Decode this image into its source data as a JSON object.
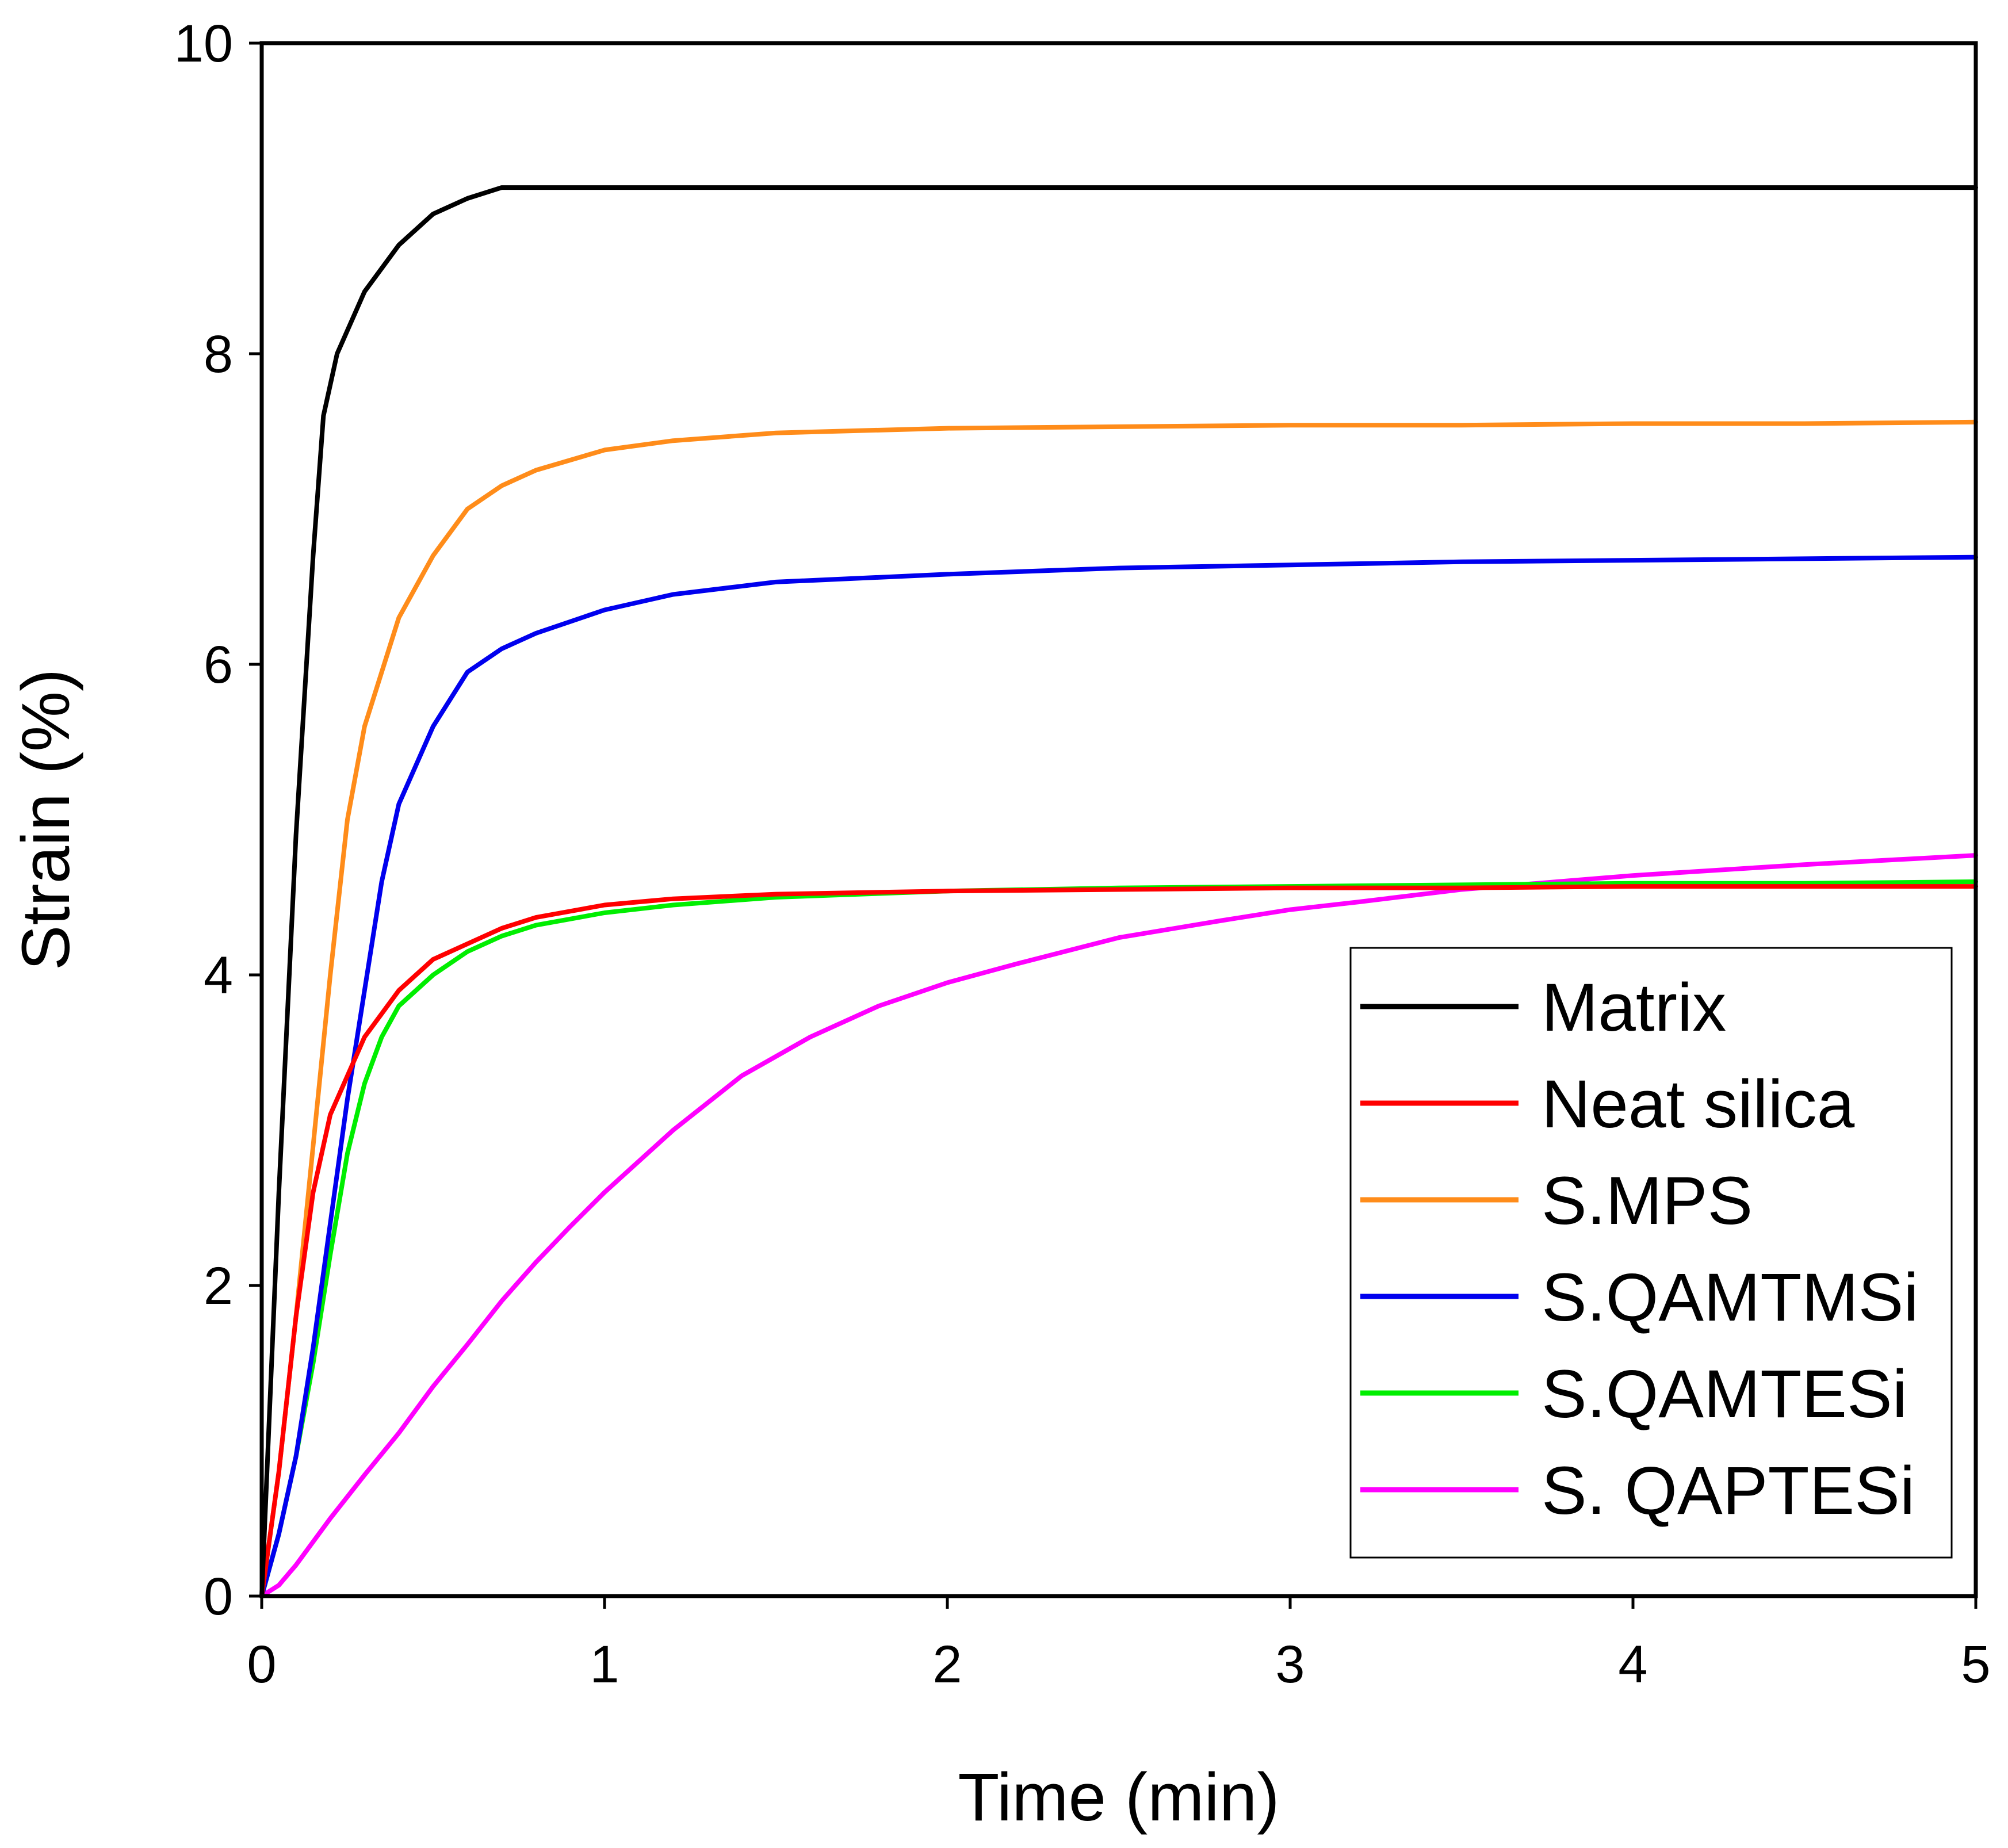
{
  "chart_data": {
    "type": "line",
    "title": "",
    "xlabel": "Time (min)",
    "ylabel": "Strain (%)",
    "xlim": [
      0,
      5
    ],
    "ylim": [
      0,
      10
    ],
    "xticks": [
      0,
      1,
      2,
      3,
      4,
      5
    ],
    "yticks": [
      0,
      2,
      4,
      6,
      8,
      10
    ],
    "xtick_labels": [
      "0",
      "1",
      "2",
      "3",
      "4",
      "5"
    ],
    "ytick_labels": [
      "0",
      "2",
      "4",
      "6",
      "8",
      "10"
    ],
    "grid": false,
    "legend_position": "bottom-right",
    "series": [
      {
        "name": "Matrix",
        "color": "#000000",
        "x": [
          0,
          0.05,
          0.1,
          0.15,
          0.18,
          0.22,
          0.3,
          0.4,
          0.5,
          0.6,
          0.7,
          1.0,
          1.5,
          2.0,
          2.5,
          3.0,
          3.5,
          4.0,
          4.5,
          5.0
        ],
        "y": [
          0,
          2.6,
          4.9,
          6.7,
          7.6,
          8.0,
          8.4,
          8.7,
          8.9,
          9.0,
          9.07,
          9.07,
          9.07,
          9.07,
          9.07,
          9.07,
          9.07,
          9.07,
          9.07,
          9.07
        ]
      },
      {
        "name": "Neat silica",
        "color": "#ff0000",
        "x": [
          0,
          0.05,
          0.1,
          0.15,
          0.2,
          0.3,
          0.4,
          0.5,
          0.6,
          0.7,
          0.8,
          1.0,
          1.2,
          1.5,
          2.0,
          2.5,
          3.0,
          3.5,
          4.0,
          4.5,
          5.0
        ],
        "y": [
          0,
          0.8,
          1.8,
          2.6,
          3.1,
          3.6,
          3.9,
          4.1,
          4.2,
          4.3,
          4.37,
          4.45,
          4.49,
          4.52,
          4.54,
          4.55,
          4.56,
          4.56,
          4.57,
          4.57,
          4.57
        ]
      },
      {
        "name": "S.MPS",
        "color": "#ff8c1a",
        "x": [
          0,
          0.05,
          0.1,
          0.15,
          0.2,
          0.25,
          0.3,
          0.4,
          0.5,
          0.6,
          0.7,
          0.8,
          1.0,
          1.2,
          1.5,
          2.0,
          2.5,
          3.0,
          3.5,
          4.0,
          4.5,
          5.0
        ],
        "y": [
          0,
          0.8,
          1.8,
          2.9,
          4.0,
          5.0,
          5.6,
          6.3,
          6.7,
          7.0,
          7.15,
          7.25,
          7.38,
          7.44,
          7.49,
          7.52,
          7.53,
          7.54,
          7.54,
          7.55,
          7.55,
          7.56
        ]
      },
      {
        "name": "S.QAMTMSi",
        "color": "#0000ee",
        "x": [
          0,
          0.05,
          0.1,
          0.15,
          0.2,
          0.25,
          0.3,
          0.35,
          0.4,
          0.5,
          0.6,
          0.7,
          0.8,
          1.0,
          1.2,
          1.5,
          2.0,
          2.5,
          3.0,
          3.5,
          4.0,
          4.5,
          5.0
        ],
        "y": [
          0,
          0.4,
          0.9,
          1.6,
          2.4,
          3.2,
          3.9,
          4.6,
          5.1,
          5.6,
          5.95,
          6.1,
          6.2,
          6.35,
          6.45,
          6.53,
          6.58,
          6.62,
          6.64,
          6.66,
          6.67,
          6.68,
          6.69
        ]
      },
      {
        "name": "S.QAMTESi",
        "color": "#00ee00",
        "x": [
          0,
          0.05,
          0.1,
          0.15,
          0.2,
          0.25,
          0.3,
          0.35,
          0.4,
          0.5,
          0.6,
          0.7,
          0.8,
          1.0,
          1.2,
          1.5,
          2.0,
          2.5,
          3.0,
          3.5,
          4.0,
          4.5,
          5.0
        ],
        "y": [
          0,
          0.4,
          0.9,
          1.5,
          2.2,
          2.85,
          3.3,
          3.6,
          3.8,
          4.0,
          4.15,
          4.25,
          4.32,
          4.4,
          4.45,
          4.5,
          4.54,
          4.56,
          4.57,
          4.58,
          4.59,
          4.59,
          4.6
        ]
      },
      {
        "name": "S. QAPTESi",
        "color": "#ff00ff",
        "x": [
          0,
          0.05,
          0.1,
          0.2,
          0.3,
          0.4,
          0.5,
          0.6,
          0.7,
          0.8,
          0.9,
          1.0,
          1.2,
          1.4,
          1.6,
          1.8,
          2.0,
          2.2,
          2.5,
          2.8,
          3.0,
          3.2,
          3.5,
          4.0,
          4.5,
          5.0
        ],
        "y": [
          0,
          0.07,
          0.2,
          0.5,
          0.78,
          1.05,
          1.35,
          1.62,
          1.9,
          2.15,
          2.38,
          2.6,
          3.0,
          3.35,
          3.6,
          3.8,
          3.95,
          4.07,
          4.24,
          4.35,
          4.42,
          4.47,
          4.55,
          4.64,
          4.71,
          4.77
        ]
      }
    ]
  }
}
